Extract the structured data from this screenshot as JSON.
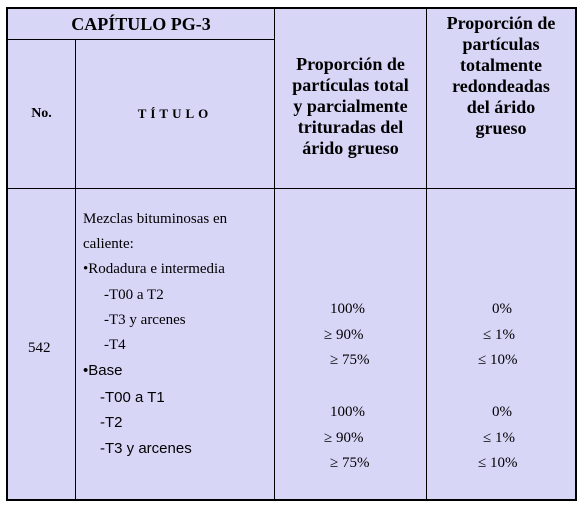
{
  "header": {
    "chapter": "CAPÍTULO PG-3",
    "no_label": "No.",
    "titulo_label": "TÍTULO",
    "col_total": [
      "Proporción de",
      "partículas total",
      "y parcialmente",
      "trituradas del",
      "árido grueso"
    ],
    "col_redondeadas": [
      "Proporción de",
      "partículas",
      "totalmente",
      "redondeadas",
      "del árido",
      "grueso"
    ]
  },
  "row": {
    "number": "542",
    "title_lines": [
      "Mezclas bituminosas en",
      "caliente:"
    ],
    "group1": {
      "label": "•Rodadura e intermedia",
      "items": [
        "-T00 a T2",
        "-T3 y arcenes",
        "-T4"
      ]
    },
    "group2": {
      "label": "•Base",
      "items": [
        "-T00 a T1",
        "-T2",
        "-T3 y arcenes"
      ]
    },
    "total_values_1": [
      "100%",
      "≥  90%",
      "≥ 75%"
    ],
    "total_values_2": [
      "100%",
      "≥  90%",
      "≥ 75%"
    ],
    "redondeadas_values_1": [
      "0%",
      "≤  1%",
      "≤  10%"
    ],
    "redondeadas_values_2": [
      "0%",
      "≤  1%",
      "≤  10%"
    ]
  }
}
